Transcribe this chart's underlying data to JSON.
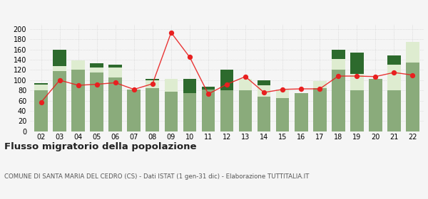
{
  "years": [
    "02",
    "03",
    "04",
    "05",
    "06",
    "07",
    "08",
    "09",
    "10",
    "11",
    "12",
    "13",
    "14",
    "15",
    "16",
    "17",
    "18",
    "19",
    "20",
    "21",
    "22"
  ],
  "iscritti_altri_comuni": [
    80,
    118,
    120,
    115,
    105,
    82,
    85,
    78,
    75,
    82,
    80,
    80,
    68,
    65,
    75,
    85,
    120,
    80,
    103,
    80,
    135
  ],
  "iscritti_estero": [
    12,
    10,
    18,
    10,
    20,
    0,
    15,
    25,
    0,
    0,
    0,
    22,
    22,
    16,
    0,
    14,
    22,
    32,
    0,
    50,
    40
  ],
  "iscritti_altri": [
    2,
    32,
    0,
    8,
    5,
    0,
    2,
    0,
    28,
    5,
    40,
    0,
    10,
    0,
    0,
    0,
    17,
    42,
    0,
    18,
    0
  ],
  "cancellati": [
    57,
    100,
    90,
    92,
    95,
    82,
    93,
    193,
    145,
    73,
    92,
    107,
    76,
    82,
    83,
    83,
    108,
    108,
    107,
    115,
    110
  ],
  "color_iscritti_altri_comuni": "#8aab7b",
  "color_iscritti_estero": "#deecd0",
  "color_iscritti_altri": "#2d6a2d",
  "color_cancellati": "#e82020",
  "title": "Flusso migratorio della popolazione",
  "subtitle": "COMUNE DI SANTA MARIA DEL CEDRO (CS) - Dati ISTAT (1 gen-31 dic) - Elaborazione TUTTITALIA.IT",
  "ylim": [
    0,
    210
  ],
  "yticks": [
    0,
    20,
    40,
    60,
    80,
    100,
    120,
    140,
    160,
    180,
    200
  ],
  "bg_color": "#f5f5f5"
}
